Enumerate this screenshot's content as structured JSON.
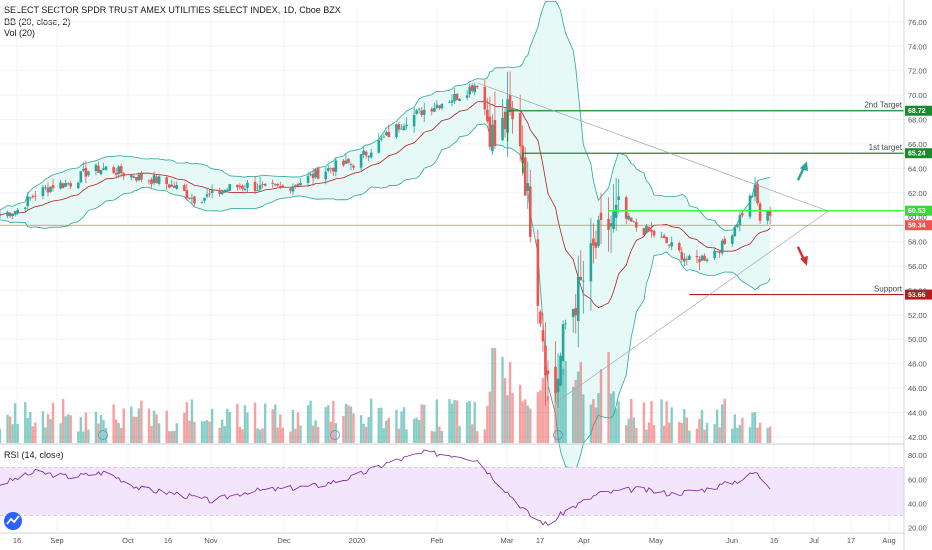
{
  "legend": {
    "title": "SELECT SECTOR SPDR TRUST AMEX UTILITIES SELECT INDEX, 1D, Cboe BZX",
    "bb": "BB (20, close, 2)",
    "vol": "Vol (20)",
    "rsi": "RSI (14, close)"
  },
  "colors": {
    "bull": "#26a69a",
    "bear": "#ef5350",
    "bb_fill": "#e0f7f5",
    "bb_band": "#2aa79b",
    "basis": "#b71c1c",
    "target": "#1b8a2f",
    "breakout_line": "#3cff3c",
    "price_line": "#ef5350",
    "support": "#b71c1c",
    "rsi_fill": "#f3e5fc",
    "rsi_line": "#7b1fa2",
    "arrow_up": "#26a69a",
    "arrow_down": "#d32f2f"
  },
  "chart_data": {
    "type": "candlestick",
    "symbol": "SELECT SECTOR SPDR TRUST AMEX UTILITIES SELECT INDEX",
    "timeframe": "1D",
    "price_axis": {
      "ticks": [
        "42.00",
        "44.00",
        "46.00",
        "48.00",
        "50.00",
        "52.00",
        "54.00",
        "56.00",
        "58.00",
        "60.00",
        "62.00",
        "64.00",
        "66.00",
        "68.00",
        "70.00",
        "72.00",
        "74.00",
        "76.00"
      ],
      "range": [
        41.5,
        77.3
      ]
    },
    "x_axis": {
      "labels": [
        "16",
        "Sep",
        "Oct",
        "16",
        "Nov",
        "Dec",
        "2020",
        "Feb",
        "Mar",
        "17",
        "Apr",
        "May",
        "Jun",
        "16",
        "Jul",
        "17",
        "Aug"
      ],
      "range": [
        "2019-08-16",
        "2020-08-08"
      ]
    },
    "price_path": [
      [
        "2019-08-16",
        60.2
      ],
      [
        "2019-08-23",
        60.6
      ],
      [
        "2019-08-30",
        61.9
      ],
      [
        "2019-09-06",
        62.6
      ],
      [
        "2019-09-13",
        62.8
      ],
      [
        "2019-09-20",
        63.8
      ],
      [
        "2019-09-27",
        64.0
      ],
      [
        "2019-10-04",
        63.6
      ],
      [
        "2019-10-11",
        63.2
      ],
      [
        "2019-10-18",
        63.0
      ],
      [
        "2019-10-25",
        62.4
      ],
      [
        "2019-11-01",
        61.5
      ],
      [
        "2019-11-08",
        61.8
      ],
      [
        "2019-11-15",
        62.4
      ],
      [
        "2019-11-22",
        62.6
      ],
      [
        "2019-11-29",
        62.3
      ],
      [
        "2019-12-06",
        62.4
      ],
      [
        "2019-12-13",
        62.9
      ],
      [
        "2019-12-20",
        63.6
      ],
      [
        "2019-12-27",
        64.2
      ],
      [
        "2020-01-03",
        64.4
      ],
      [
        "2020-01-10",
        65.6
      ],
      [
        "2020-01-17",
        66.8
      ],
      [
        "2020-01-24",
        68.0
      ],
      [
        "2020-01-31",
        68.8
      ],
      [
        "2020-02-07",
        69.4
      ],
      [
        "2020-02-14",
        70.0
      ],
      [
        "2020-02-21",
        71.0
      ],
      [
        "2020-02-28",
        66.0
      ],
      [
        "2020-03-04",
        68.2
      ],
      [
        "2020-03-09",
        66.6
      ],
      [
        "2020-03-13",
        59.8
      ],
      [
        "2020-03-16",
        54.2
      ],
      [
        "2020-03-20",
        46.8
      ],
      [
        "2020-03-23",
        45.8
      ],
      [
        "2020-03-27",
        51.2
      ],
      [
        "2020-04-03",
        54.8
      ],
      [
        "2020-04-09",
        58.2
      ],
      [
        "2020-04-17",
        60.3
      ],
      [
        "2020-04-24",
        59.2
      ],
      [
        "2020-05-01",
        58.6
      ],
      [
        "2020-05-08",
        57.6
      ],
      [
        "2020-05-15",
        56.4
      ],
      [
        "2020-05-22",
        56.8
      ],
      [
        "2020-05-29",
        57.8
      ],
      [
        "2020-06-05",
        60.4
      ],
      [
        "2020-06-10",
        62.3
      ],
      [
        "2020-06-12",
        59.8
      ],
      [
        "2020-06-16",
        60.4
      ]
    ],
    "bollinger": {
      "period": 20,
      "source": "close",
      "stddev": 2
    },
    "volume": {
      "period": 20
    },
    "rsi": {
      "period": 14,
      "ticks": [
        "20.00",
        "40.00",
        "60.00",
        "80.00"
      ],
      "range": [
        18,
        86
      ],
      "bands": [
        30,
        70
      ],
      "values": [
        [
          "2019-08-16",
          56
        ],
        [
          "2019-08-30",
          66
        ],
        [
          "2019-09-13",
          62
        ],
        [
          "2019-09-27",
          66
        ],
        [
          "2019-10-11",
          52
        ],
        [
          "2019-10-25",
          48
        ],
        [
          "2019-11-08",
          42
        ],
        [
          "2019-11-22",
          50
        ],
        [
          "2019-12-06",
          52
        ],
        [
          "2019-12-20",
          55
        ],
        [
          "2020-01-03",
          62
        ],
        [
          "2020-01-17",
          74
        ],
        [
          "2020-01-31",
          82
        ],
        [
          "2020-02-14",
          80
        ],
        [
          "2020-02-21",
          76
        ],
        [
          "2020-02-28",
          60
        ],
        [
          "2020-03-06",
          45
        ],
        [
          "2020-03-13",
          30
        ],
        [
          "2020-03-20",
          22
        ],
        [
          "2020-03-27",
          34
        ],
        [
          "2020-04-09",
          48
        ],
        [
          "2020-04-24",
          52
        ],
        [
          "2020-05-08",
          48
        ],
        [
          "2020-05-22",
          52
        ],
        [
          "2020-06-05",
          60
        ],
        [
          "2020-06-10",
          66
        ],
        [
          "2020-06-16",
          54
        ]
      ]
    },
    "annotations": [
      {
        "type": "hline",
        "label": "2nd Target",
        "value": 68.72,
        "badge": "68.72",
        "from": "2020-03-04"
      },
      {
        "type": "hline",
        "label": "1st target",
        "value": 65.24,
        "badge": "65.24",
        "from": "2020-03-10"
      },
      {
        "type": "hline",
        "label": "",
        "value": 60.53,
        "badge": "60.53",
        "from": "2020-04-13"
      },
      {
        "type": "hline",
        "label": "",
        "value": 59.34,
        "badge": "59.34",
        "from": "2019-08-16"
      },
      {
        "type": "hline",
        "label": "Support",
        "value": 53.66,
        "badge": "53.66",
        "from": "2020-05-15"
      },
      {
        "type": "triangle",
        "upper_start": [
          "2020-02-21",
          71.0
        ],
        "lower_start": [
          "2020-03-23",
          44.8
        ],
        "apex": [
          "2020-07-09",
          60.5
        ]
      },
      {
        "type": "arrow",
        "direction": "up",
        "at": [
          "2020-06-27",
          63.6
        ]
      },
      {
        "type": "arrow",
        "direction": "down",
        "at": [
          "2020-06-27",
          57.0
        ]
      }
    ],
    "grid": true
  }
}
